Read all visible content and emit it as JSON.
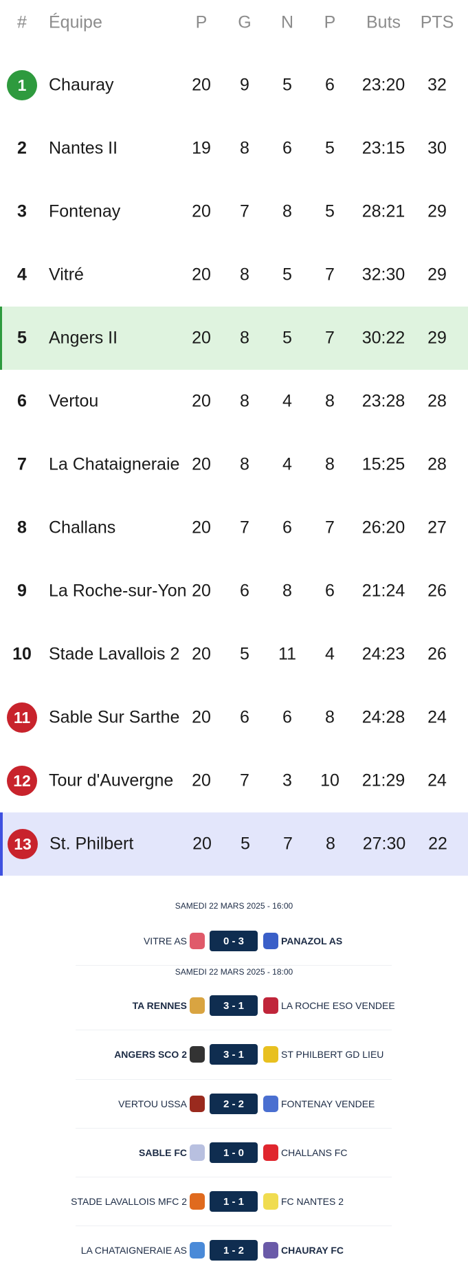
{
  "table": {
    "headers": [
      "#",
      "Équipe",
      "P",
      "G",
      "N",
      "P",
      "Buts",
      "PTS"
    ],
    "colors": {
      "promotion": "#2e9a3e",
      "relegation": "#c8232c",
      "highlight_green": "#dff3df",
      "highlight_blue": "#e3e6fb"
    },
    "rows": [
      {
        "rank": "1",
        "team": "Chauray",
        "p": "20",
        "g": "9",
        "n": "5",
        "l": "6",
        "buts": "23:20",
        "pts": "32",
        "badge": "green"
      },
      {
        "rank": "2",
        "team": "Nantes II",
        "p": "19",
        "g": "8",
        "n": "6",
        "l": "5",
        "buts": "23:15",
        "pts": "30"
      },
      {
        "rank": "3",
        "team": "Fontenay",
        "p": "20",
        "g": "7",
        "n": "8",
        "l": "5",
        "buts": "28:21",
        "pts": "29"
      },
      {
        "rank": "4",
        "team": "Vitré",
        "p": "20",
        "g": "8",
        "n": "5",
        "l": "7",
        "buts": "32:30",
        "pts": "29"
      },
      {
        "rank": "5",
        "team": "Angers II",
        "p": "20",
        "g": "8",
        "n": "5",
        "l": "7",
        "buts": "30:22",
        "pts": "29",
        "highlight": "green"
      },
      {
        "rank": "6",
        "team": "Vertou",
        "p": "20",
        "g": "8",
        "n": "4",
        "l": "8",
        "buts": "23:28",
        "pts": "28"
      },
      {
        "rank": "7",
        "team": "La Chataigneraie",
        "p": "20",
        "g": "8",
        "n": "4",
        "l": "8",
        "buts": "15:25",
        "pts": "28"
      },
      {
        "rank": "8",
        "team": "Challans",
        "p": "20",
        "g": "7",
        "n": "6",
        "l": "7",
        "buts": "26:20",
        "pts": "27"
      },
      {
        "rank": "9",
        "team": "La Roche-sur-Yon",
        "p": "20",
        "g": "6",
        "n": "8",
        "l": "6",
        "buts": "21:24",
        "pts": "26"
      },
      {
        "rank": "10",
        "team": "Stade Lavallois 2",
        "p": "20",
        "g": "5",
        "n": "11",
        "l": "4",
        "buts": "24:23",
        "pts": "26"
      },
      {
        "rank": "11",
        "team": "Sable Sur Sarthe",
        "p": "20",
        "g": "6",
        "n": "6",
        "l": "8",
        "buts": "24:28",
        "pts": "24",
        "badge": "red"
      },
      {
        "rank": "12",
        "team": "Tour d'Auvergne",
        "p": "20",
        "g": "7",
        "n": "3",
        "l": "10",
        "buts": "21:29",
        "pts": "24",
        "badge": "red"
      },
      {
        "rank": "13",
        "team": "St. Philbert",
        "p": "20",
        "g": "5",
        "n": "7",
        "l": "8",
        "buts": "27:30",
        "pts": "22",
        "badge": "red",
        "highlight": "blue"
      }
    ]
  },
  "matches": {
    "dates": [
      "SAMEDI 22 MARS 2025 - 16:00",
      "SAMEDI 22 MARS 2025 - 18:00"
    ],
    "score_color": "#0f2d50",
    "items": [
      {
        "home": "VITRE AS",
        "away": "PANAZOL AS",
        "score": "0 - 3",
        "winner": "away",
        "home_logo": "#e05a6a",
        "away_logo": "#3a5fc8"
      },
      {
        "home": "TA RENNES",
        "away": "LA ROCHE ESO VENDEE",
        "score": "3 - 1",
        "winner": "home",
        "home_logo": "#d9a441",
        "away_logo": "#c0253a"
      },
      {
        "home": "ANGERS SCO 2",
        "away": "ST PHILBERT GD LIEU",
        "score": "3 - 1",
        "winner": "home",
        "home_logo": "#333333",
        "away_logo": "#e8c020"
      },
      {
        "home": "VERTOU USSA",
        "away": "FONTENAY VENDEE",
        "score": "2 - 2",
        "winner": "none",
        "home_logo": "#9a2a1e",
        "away_logo": "#4a6fd0"
      },
      {
        "home": "SABLE FC",
        "away": "CHALLANS FC",
        "score": "1 - 0",
        "winner": "home",
        "home_logo": "#b8c0e0",
        "away_logo": "#e0262e"
      },
      {
        "home": "STADE LAVALLOIS MFC 2",
        "away": "FC NANTES 2",
        "score": "1 - 1",
        "winner": "none",
        "home_logo": "#e06a1e",
        "away_logo": "#f0dc50"
      },
      {
        "home": "LA CHATAIGNERAIE AS",
        "away": "CHAURAY FC",
        "score": "1 - 2",
        "winner": "away",
        "home_logo": "#4a8ad8",
        "away_logo": "#6a5aa8"
      }
    ]
  }
}
